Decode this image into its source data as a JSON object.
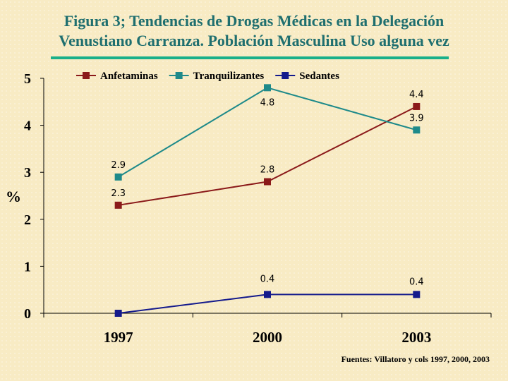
{
  "title_line1": "Figura 3; Tendencias de Drogas Médicas en  la Delegación",
  "title_line2": "Venustiano Carranza. Población Masculina Uso alguna vez",
  "source": "Fuentes: Villatoro y cols 1997, 2000, 2003",
  "colors": {
    "title": "#1f6f6f",
    "rule": "#19b08a",
    "background": "#f8ebc4"
  },
  "chart_data": {
    "type": "line",
    "categories": [
      "1997",
      "2000",
      "2003"
    ],
    "ylabel": "%",
    "ylim": [
      0,
      5
    ],
    "yticks": [
      "0",
      "1",
      "2",
      "3",
      "4",
      "5"
    ],
    "legend_position": "top",
    "grid": false,
    "series": [
      {
        "name": "Anfetaminas",
        "color": "#8b1a1a",
        "values": [
          2.3,
          2.8,
          4.4
        ],
        "labels": [
          "2.3",
          "2.8",
          "4.4"
        ]
      },
      {
        "name": "Tranquilizantes",
        "color": "#1e8a8a",
        "values": [
          2.9,
          4.8,
          3.9
        ],
        "labels": [
          "2.9",
          "4.8",
          "3.9"
        ]
      },
      {
        "name": "Sedantes",
        "color": "#141a8c",
        "values": [
          0,
          0.4,
          0.4
        ],
        "labels": [
          null,
          "0.4",
          "0.4"
        ]
      }
    ]
  }
}
